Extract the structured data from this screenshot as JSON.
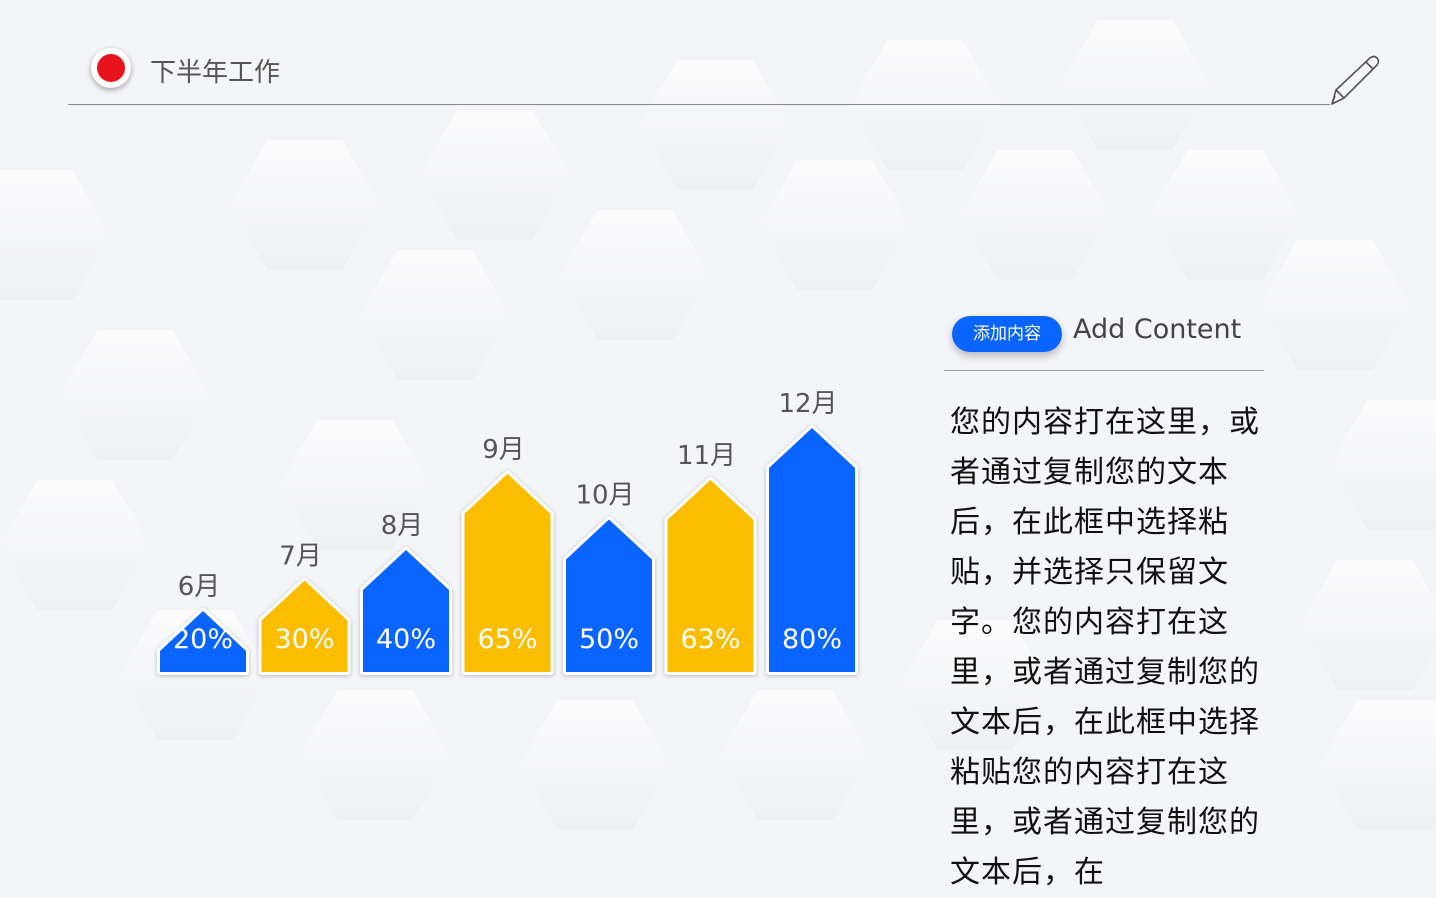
{
  "header": {
    "title": "下半年工作"
  },
  "chart_data": {
    "type": "bar",
    "categories": [
      "6月",
      "7月",
      "8月",
      "9月",
      "10月",
      "11月",
      "12月"
    ],
    "values": [
      20,
      30,
      40,
      65,
      50,
      63,
      80
    ],
    "value_labels": [
      "20%",
      "30%",
      "40%",
      "65%",
      "50%",
      "63%",
      "80%"
    ],
    "colors": [
      "#0a64ff",
      "#fbbd00",
      "#0a64ff",
      "#fbbd00",
      "#0a64ff",
      "#fbbd00",
      "#0a64ff"
    ],
    "grid": false,
    "legend": "none"
  },
  "panel": {
    "tag": "添加内容",
    "heading": "Add Content",
    "body": "您的内容打在这里，或者通过复制您的文本后，在此框中选择粘贴，并选择只保留文字。您的内容打在这里，或者通过复制您的文本后，在此框中选择粘贴您的内容打在这里，或者通过复制您的文本后，在"
  },
  "colors": {
    "accent_blue": "#0a64ff",
    "accent_yellow": "#fbbd00",
    "dot_red": "#e8141b"
  },
  "icons": {
    "pen": "pen-icon"
  }
}
